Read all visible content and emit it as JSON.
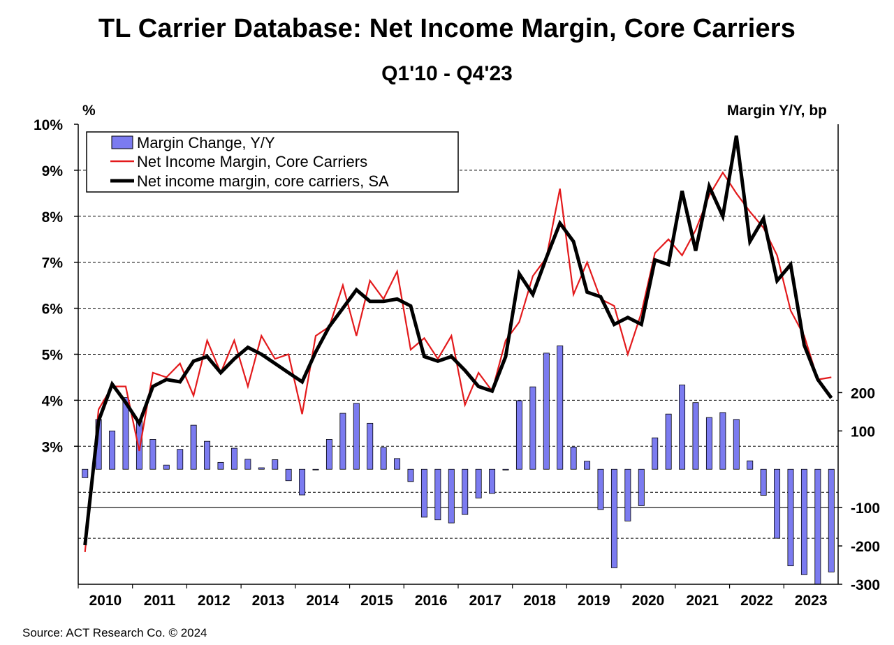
{
  "header": {
    "title": "TL Carrier Database: Net Income Margin, Core Carriers",
    "subtitle": "Q1'10 - Q4'23"
  },
  "footer": {
    "source": "Source: ACT Research Co. © 2024"
  },
  "chart_data": {
    "type": "bar+line",
    "title": "TL Carrier Database: Net Income Margin, Core Carriers",
    "subtitle": "Q1'10 - Q4'23",
    "left_axis": {
      "unit_label": "%",
      "ticks": [
        "3%",
        "4%",
        "5%",
        "6%",
        "7%",
        "8%",
        "9%",
        "10%"
      ],
      "tick_values": [
        3,
        4,
        5,
        6,
        7,
        8,
        9,
        10
      ],
      "range": [
        0,
        10
      ]
    },
    "right_axis": {
      "unit_label": "Margin Y/Y, bp",
      "ticks": [
        "200",
        "100",
        "-100",
        "-200",
        "-300"
      ],
      "tick_values": [
        200,
        100,
        -100,
        -200,
        -300
      ],
      "range": [
        -300,
        900
      ]
    },
    "x_axis": {
      "year_labels": [
        "2010",
        "2011",
        "2012",
        "2013",
        "2014",
        "2015",
        "2016",
        "2017",
        "2018",
        "2019",
        "2020",
        "2021",
        "2022",
        "2023"
      ],
      "first_quarter": "Q1'10",
      "quarters": 56
    },
    "grid": "dashed horizontal",
    "legend_position": "top-left",
    "legend": [
      {
        "label": "Margin Change, Y/Y",
        "kind": "bar",
        "color": "#7b7bf0"
      },
      {
        "label": "Net Income Margin, Core Carriers",
        "kind": "line",
        "color": "#e31a1c"
      },
      {
        "label": "Net income margin, core carriers, SA",
        "kind": "line",
        "color": "#000000"
      }
    ],
    "series": [
      {
        "name": "Margin Change, Y/Y",
        "axis": "right",
        "type": "bar",
        "values": [
          -22,
          130,
          100,
          187,
          127,
          78,
          11,
          52,
          115,
          73,
          18,
          55,
          26,
          4,
          25,
          -30,
          -67,
          0,
          78,
          146,
          172,
          120,
          57,
          28,
          -32,
          -125,
          -132,
          -140,
          -118,
          -75,
          -63,
          -2,
          179,
          215,
          303,
          322,
          58,
          21,
          -105,
          -257,
          -135,
          -95,
          82,
          144,
          220,
          174,
          135,
          148,
          130,
          22,
          -68,
          -180,
          -252,
          -275,
          -335,
          -268
        ]
      },
      {
        "name": "Net Income Margin, Core Carriers",
        "axis": "left",
        "type": "line",
        "color": "#e31a1c",
        "values": [
          0.7,
          3.8,
          4.3,
          4.3,
          2.9,
          4.6,
          4.5,
          4.8,
          4.1,
          5.3,
          4.6,
          5.3,
          4.3,
          5.4,
          4.9,
          5.0,
          3.7,
          5.4,
          5.6,
          6.5,
          5.4,
          6.6,
          6.2,
          6.8,
          5.1,
          5.35,
          4.9,
          5.4,
          3.9,
          4.6,
          4.2,
          5.3,
          5.7,
          6.7,
          7.1,
          8.6,
          6.3,
          7.0,
          6.2,
          6.05,
          5.0,
          5.9,
          7.2,
          7.5,
          7.15,
          7.7,
          8.45,
          8.95,
          8.5,
          8.1,
          7.75,
          7.15,
          5.95,
          5.4,
          4.45,
          4.5
        ]
      },
      {
        "name": "Net income margin, core carriers, SA",
        "axis": "left",
        "type": "line",
        "color": "#000000",
        "values": [
          0.85,
          3.55,
          4.35,
          3.95,
          3.5,
          4.3,
          4.45,
          4.4,
          4.85,
          4.95,
          4.6,
          4.9,
          5.15,
          5.0,
          4.8,
          4.6,
          4.4,
          5.05,
          5.6,
          6.0,
          6.4,
          6.15,
          6.15,
          6.2,
          6.05,
          4.95,
          4.85,
          4.95,
          4.65,
          4.3,
          4.2,
          4.95,
          6.75,
          6.3,
          7.1,
          7.85,
          7.45,
          6.35,
          6.25,
          5.65,
          5.8,
          5.65,
          7.05,
          6.95,
          8.55,
          7.25,
          8.65,
          8.0,
          9.75,
          7.45,
          7.95,
          6.6,
          6.95,
          5.2,
          4.45,
          4.05
        ]
      }
    ]
  }
}
